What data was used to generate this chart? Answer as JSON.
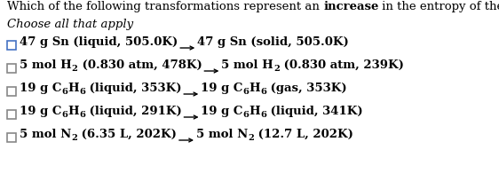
{
  "title_normal": "Which of the following transformations represent an ",
  "title_bold": "increase",
  "title_end": " in the entropy of the system.",
  "subtitle": "Choose all that apply",
  "background_color": "#ffffff",
  "items": [
    {
      "left_parts": [
        {
          "text": "47 g Sn (liquid, 505.0K)",
          "bold": true,
          "sub": false
        }
      ],
      "right_parts": [
        {
          "text": "47 g Sn (solid, 505.0K)",
          "bold": true,
          "sub": false
        }
      ],
      "checkbox_color": "#4472c4"
    },
    {
      "left_parts": [
        {
          "text": "5 mol H",
          "bold": true,
          "sub": false
        },
        {
          "text": "2",
          "bold": true,
          "sub": true
        },
        {
          "text": " (0.830 atm, 478K)",
          "bold": true,
          "sub": false
        }
      ],
      "right_parts": [
        {
          "text": "5 mol H",
          "bold": true,
          "sub": false
        },
        {
          "text": "2",
          "bold": true,
          "sub": true
        },
        {
          "text": " (0.830 atm, 239K)",
          "bold": true,
          "sub": false
        }
      ],
      "checkbox_color": "#888888"
    },
    {
      "left_parts": [
        {
          "text": "19 g C",
          "bold": true,
          "sub": false
        },
        {
          "text": "6",
          "bold": true,
          "sub": true
        },
        {
          "text": "H",
          "bold": true,
          "sub": false
        },
        {
          "text": "6",
          "bold": true,
          "sub": true
        },
        {
          "text": " (liquid, 353K)",
          "bold": true,
          "sub": false
        }
      ],
      "right_parts": [
        {
          "text": "19 g C",
          "bold": true,
          "sub": false
        },
        {
          "text": "6",
          "bold": true,
          "sub": true
        },
        {
          "text": "H",
          "bold": true,
          "sub": false
        },
        {
          "text": "6",
          "bold": true,
          "sub": true
        },
        {
          "text": " (gas, 353K)",
          "bold": true,
          "sub": false
        }
      ],
      "checkbox_color": "#888888"
    },
    {
      "left_parts": [
        {
          "text": "19 g C",
          "bold": true,
          "sub": false
        },
        {
          "text": "6",
          "bold": true,
          "sub": true
        },
        {
          "text": "H",
          "bold": true,
          "sub": false
        },
        {
          "text": "6",
          "bold": true,
          "sub": true
        },
        {
          "text": " (liquid, 291K)",
          "bold": true,
          "sub": false
        }
      ],
      "right_parts": [
        {
          "text": "19 g C",
          "bold": true,
          "sub": false
        },
        {
          "text": "6",
          "bold": true,
          "sub": true
        },
        {
          "text": "H",
          "bold": true,
          "sub": false
        },
        {
          "text": "6",
          "bold": true,
          "sub": true
        },
        {
          "text": " (liquid, 341K)",
          "bold": true,
          "sub": false
        }
      ],
      "checkbox_color": "#888888"
    },
    {
      "left_parts": [
        {
          "text": "5 mol N",
          "bold": true,
          "sub": false
        },
        {
          "text": "2",
          "bold": true,
          "sub": true
        },
        {
          "text": " (6.35 L, 202K)",
          "bold": true,
          "sub": false
        }
      ],
      "right_parts": [
        {
          "text": "5 mol N",
          "bold": true,
          "sub": false
        },
        {
          "text": "2",
          "bold": true,
          "sub": true
        },
        {
          "text": " (12.7 L, 202K)",
          "bold": true,
          "sub": false
        }
      ],
      "checkbox_color": "#888888"
    }
  ],
  "text_color": "#000000",
  "title_fontsize": 9.5,
  "subtitle_fontsize": 9.5,
  "item_fontsize": 9.5,
  "dpi": 100,
  "fig_width": 5.62,
  "fig_height": 2.13
}
